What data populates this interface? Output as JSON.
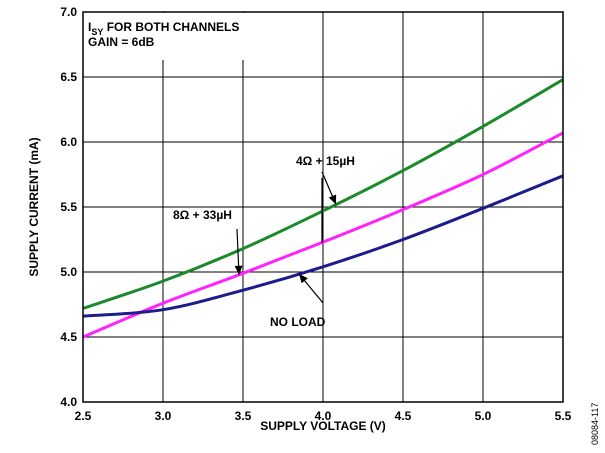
{
  "chart_data": {
    "type": "line",
    "xlabel": "SUPPLY VOLTAGE (V)",
    "ylabel": "SUPPLY CURRENT (mA)",
    "xlim": [
      2.5,
      5.5
    ],
    "ylim": [
      4.0,
      7.0
    ],
    "xticks": [
      "2.5",
      "3.0",
      "3.5",
      "4.0",
      "4.5",
      "5.0",
      "5.5"
    ],
    "yticks": [
      "4.0",
      "4.5",
      "5.0",
      "5.5",
      "6.0",
      "6.5",
      "7.0"
    ],
    "grid": true,
    "legend_box": {
      "line1_main": "I",
      "line1_sub": "SY",
      "line1_rest": " FOR BOTH CHANNELS",
      "line2": "GAIN = 6dB"
    },
    "series": [
      {
        "name": "4Ω + 15µH",
        "color": "#1a8a2a",
        "x": [
          2.5,
          3.0,
          3.5,
          4.0,
          4.5,
          5.0,
          5.5
        ],
        "values": [
          4.72,
          4.93,
          5.18,
          5.47,
          5.78,
          6.12,
          6.48
        ]
      },
      {
        "name": "8Ω + 33µH",
        "color": "#ff22ff",
        "x": [
          2.5,
          3.0,
          3.5,
          4.0,
          4.5,
          5.0,
          5.5
        ],
        "values": [
          4.5,
          4.76,
          4.99,
          5.23,
          5.48,
          5.75,
          6.07
        ]
      },
      {
        "name": "NO LOAD",
        "color": "#1c1c8c",
        "x": [
          2.5,
          3.0,
          3.5,
          4.0,
          4.5,
          5.0,
          5.5
        ],
        "values": [
          4.66,
          4.71,
          4.86,
          5.04,
          5.25,
          5.49,
          5.74
        ]
      }
    ],
    "annotations": [
      {
        "text": "4Ω + 15µH",
        "series": 0,
        "at_x": 4.0
      },
      {
        "text": "8Ω + 33µH",
        "series": 1,
        "at_x": 3.5
      },
      {
        "text": "NO LOAD",
        "series": 2,
        "at_x": 3.85
      }
    ],
    "side_label": "08084-117"
  }
}
